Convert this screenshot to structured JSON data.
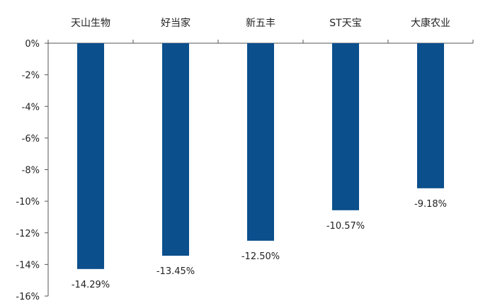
{
  "chart_data": {
    "type": "bar",
    "title": "",
    "xlabel": "",
    "ylabel": "",
    "categories": [
      "天山生物",
      "好当家",
      "新五丰",
      "ST天宝",
      "大康农业"
    ],
    "values": [
      -14.29,
      -13.45,
      -12.5,
      -10.57,
      -9.18
    ],
    "data_labels": [
      "-14.29%",
      "-13.45%",
      "-12.50%",
      "-10.57%",
      "-9.18%"
    ],
    "ylim": [
      -16,
      0
    ],
    "y_ticks": [
      0,
      -2,
      -4,
      -6,
      -8,
      -10,
      -12,
      -14,
      -16
    ],
    "y_tick_labels": [
      "0%",
      "-2%",
      "-4%",
      "-6%",
      "-8%",
      "-10%",
      "-12%",
      "-14%",
      "-16%"
    ],
    "x_axis_position": "top",
    "grid": false,
    "legend": "none",
    "bar_color": "#0b4f8c"
  }
}
